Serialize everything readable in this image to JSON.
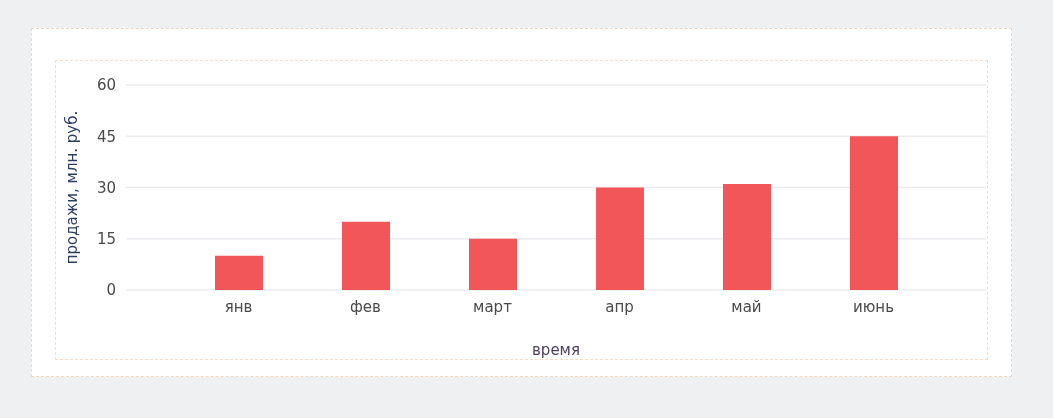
{
  "chart_data": {
    "type": "bar",
    "xlabel": "время",
    "ylabel": "продажи, млн. руб.",
    "categories": [
      "янв",
      "фев",
      "март",
      "апр",
      "май",
      "июнь"
    ],
    "values": [
      10,
      20,
      15,
      30,
      31,
      45
    ],
    "color": "#f25658",
    "ylim": [
      0,
      60
    ],
    "yticks": [
      0,
      15,
      30,
      45,
      60
    ],
    "grid": "y"
  }
}
